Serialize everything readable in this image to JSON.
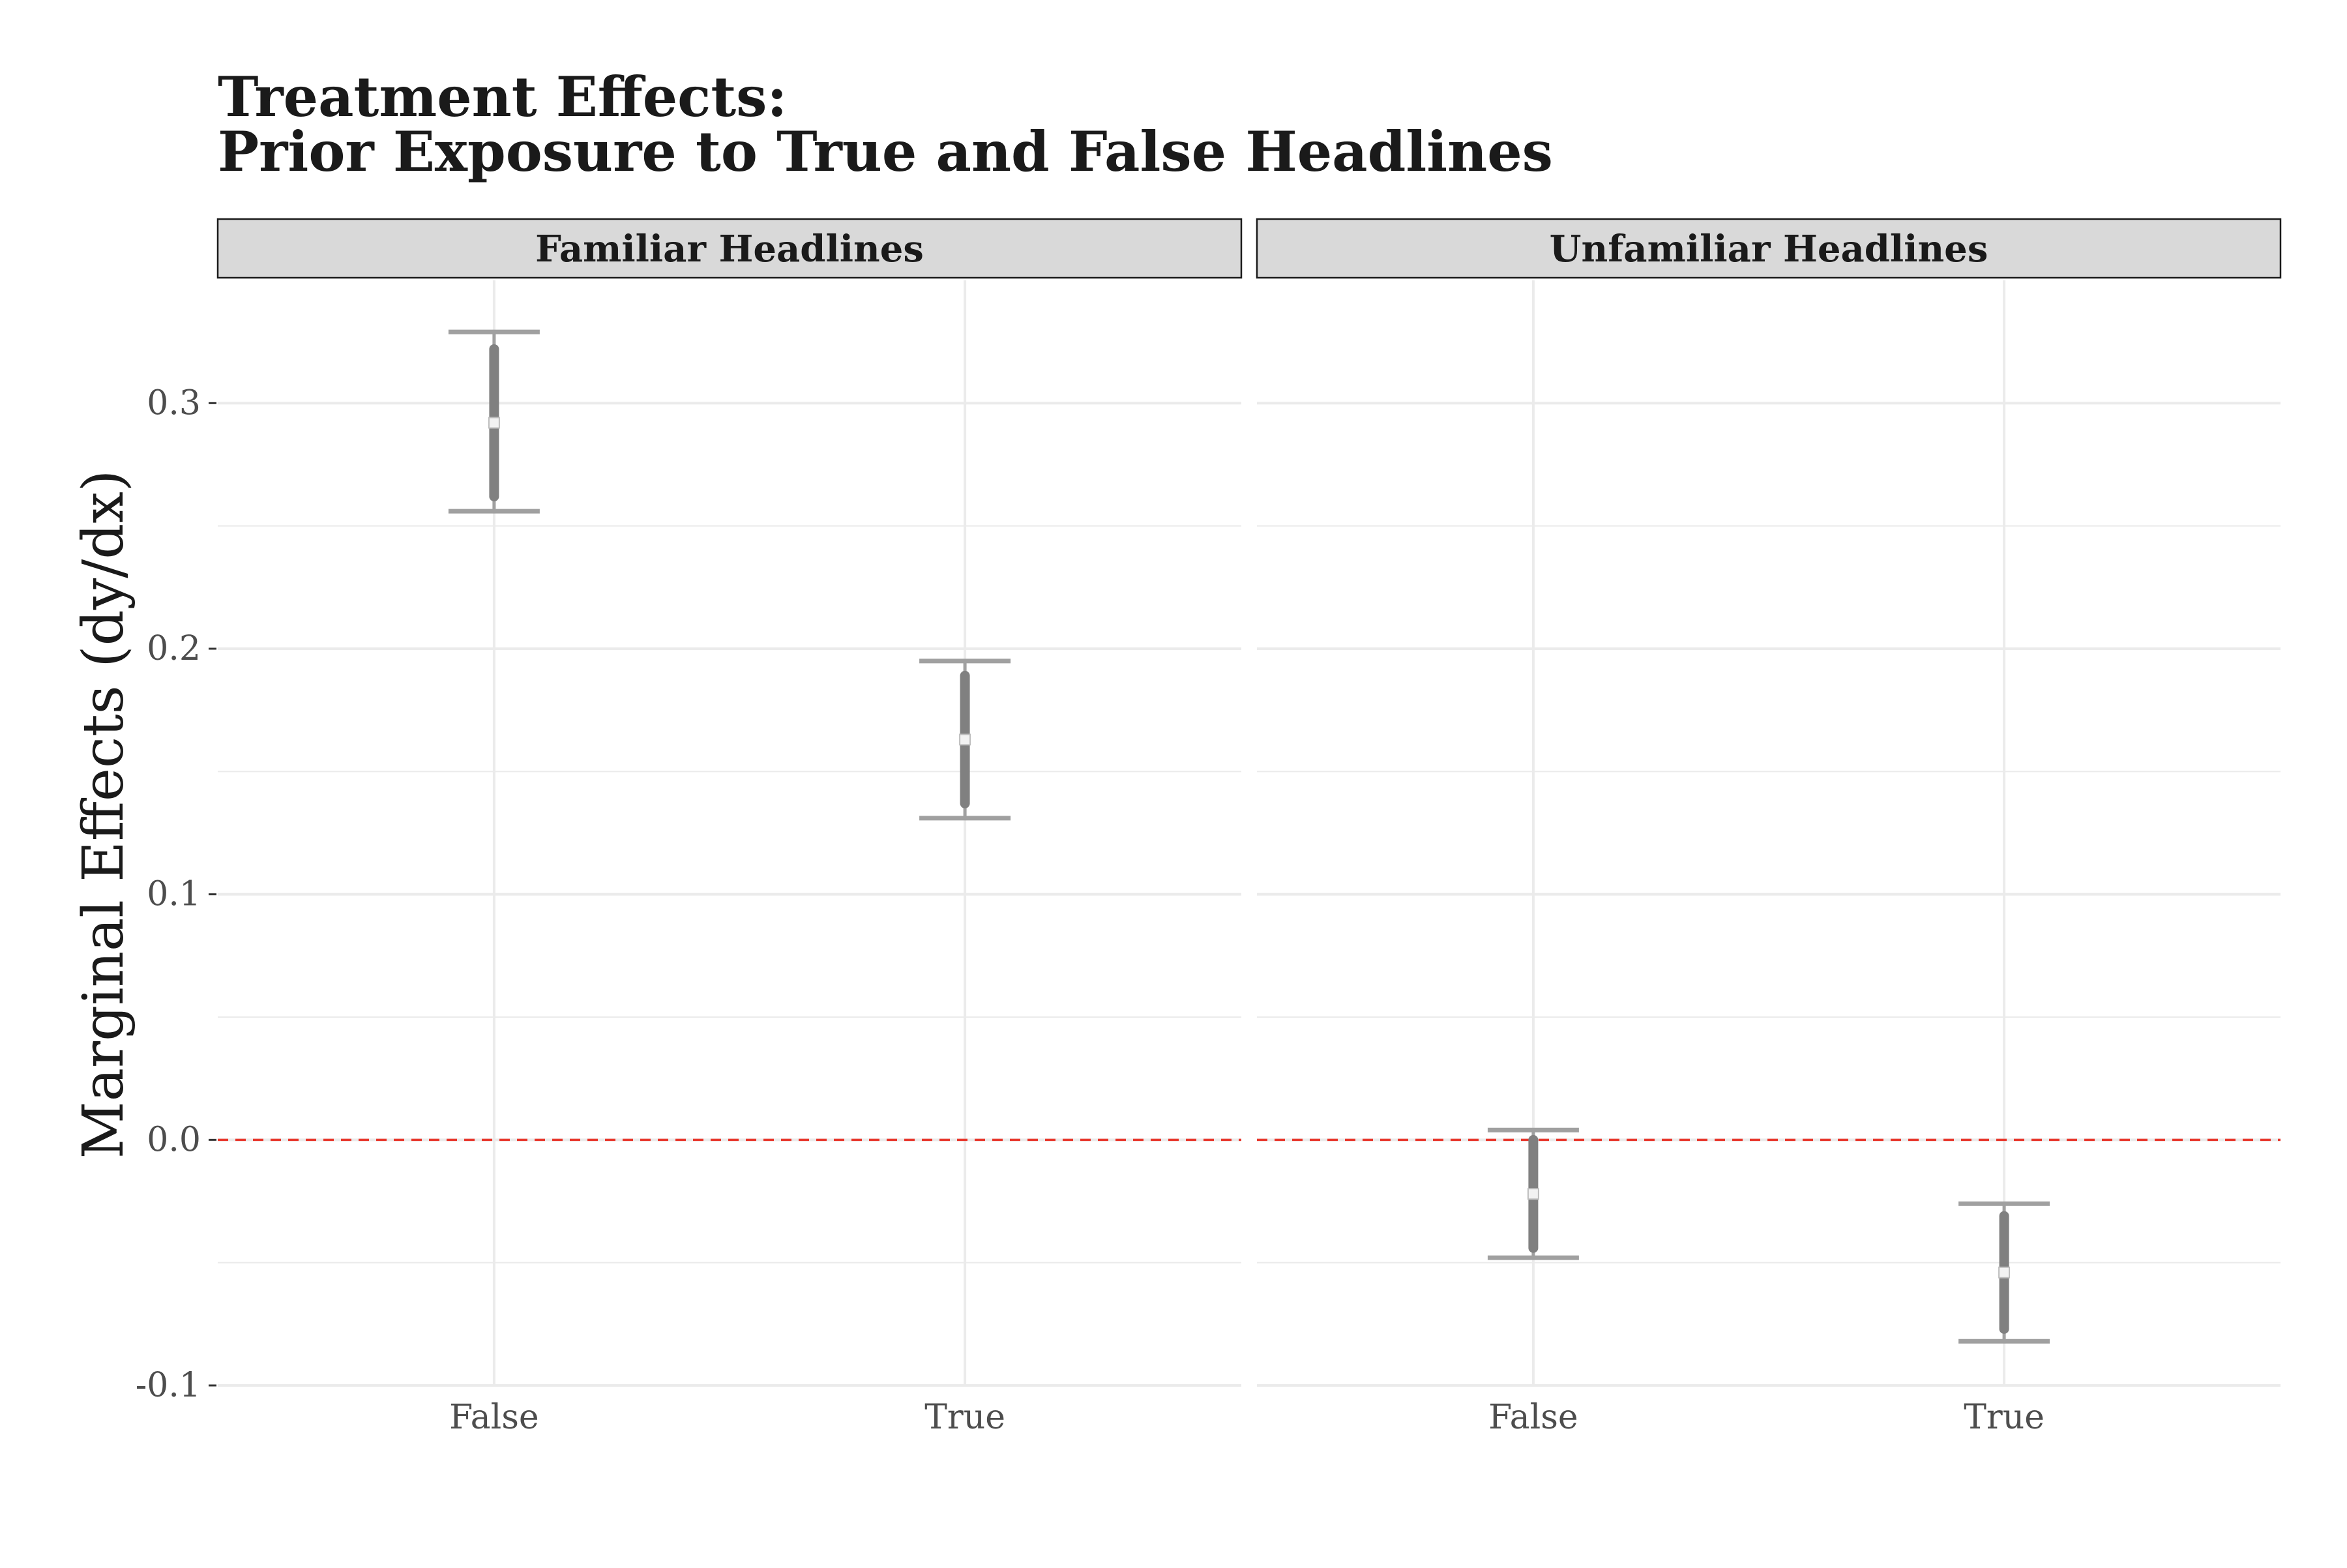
{
  "chart_data": {
    "type": "errorbar",
    "title_lines": [
      "Treatment Effects:",
      "Prior Exposure to True and False Headlines"
    ],
    "ylabel": "Marginal Effects (dy/dx)",
    "ylim": [
      -0.1,
      0.35
    ],
    "yticks": [
      -0.1,
      0.0,
      0.1,
      0.2,
      0.3
    ],
    "ytick_labels": [
      "-0.1",
      "0.0",
      "0.1",
      "0.2",
      "0.3"
    ],
    "reference_line": {
      "y": 0.0,
      "style": "dashed",
      "color": "#e8392e"
    },
    "grid": true,
    "categories": [
      "False",
      "True"
    ],
    "panels": [
      {
        "label": "Familiar Headlines",
        "points": [
          {
            "x": "False",
            "estimate": 0.292,
            "ci90": [
              0.262,
              0.322
            ],
            "ci95": [
              0.256,
              0.329
            ]
          },
          {
            "x": "True",
            "estimate": 0.163,
            "ci90": [
              0.137,
              0.189
            ],
            "ci95": [
              0.131,
              0.195
            ]
          }
        ]
      },
      {
        "label": "Unfamiliar Headlines",
        "points": [
          {
            "x": "False",
            "estimate": -0.022,
            "ci90": [
              -0.044,
              0.0
            ],
            "ci95": [
              -0.048,
              0.004
            ]
          },
          {
            "x": "True",
            "estimate": -0.054,
            "ci90": [
              -0.077,
              -0.031
            ],
            "ci95": [
              -0.082,
              -0.026
            ]
          }
        ]
      }
    ],
    "colors": {
      "bar": "#808080",
      "whisker": "#a0a0a0",
      "point": "#f2f2f2",
      "grid": "#ebebeb",
      "strip": "#d9d9d9"
    }
  }
}
